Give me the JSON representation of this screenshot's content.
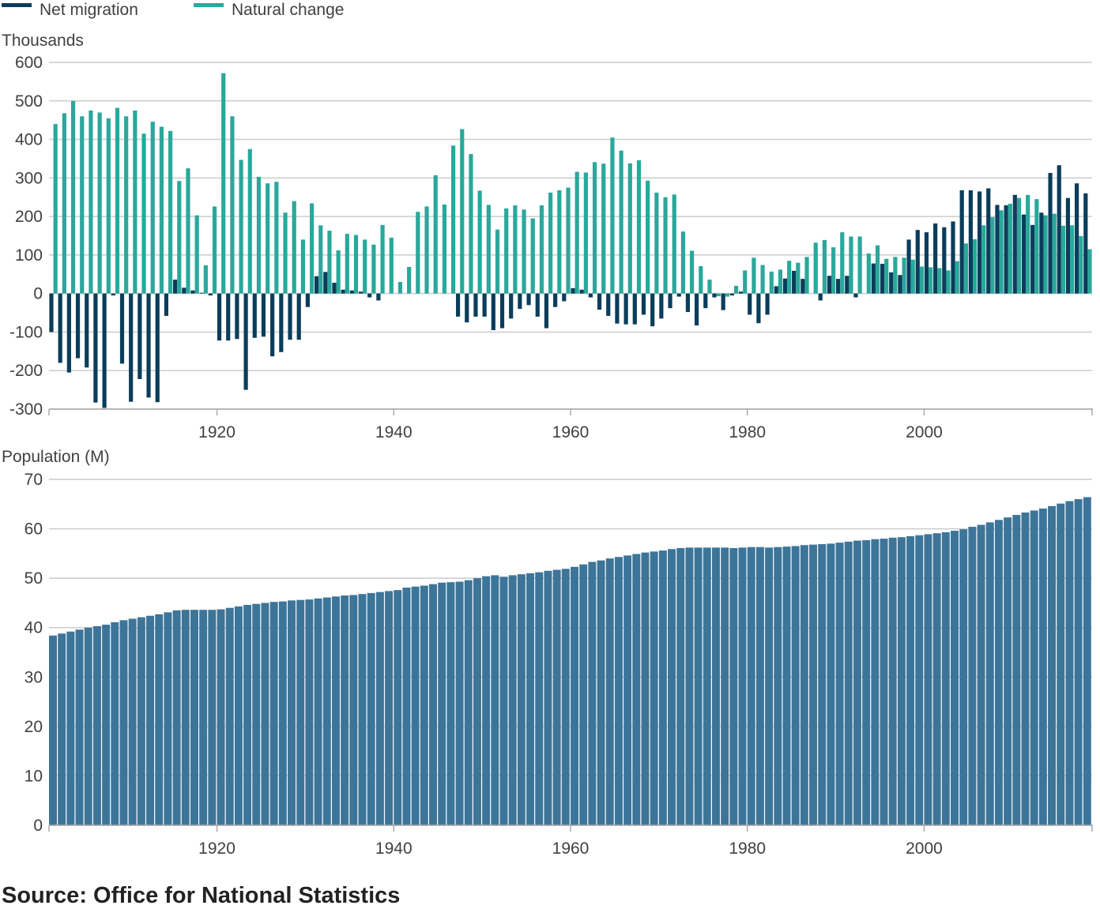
{
  "legend": {
    "net_migration": "Net migration",
    "natural_change": "Natural change"
  },
  "colors": {
    "net_migration": "#0b3d5b",
    "natural_change": "#29a89b",
    "population": "#3d7599",
    "grid": "#cccccc"
  },
  "source": "Source: Office for National Statistics",
  "chart_data": [
    {
      "type": "bar",
      "ylabel": "Thousands",
      "ylim": [
        -300,
        600
      ],
      "yticks": [
        600,
        500,
        400,
        300,
        200,
        100,
        0,
        -100,
        -200,
        -300
      ],
      "xticks": [
        1920,
        1940,
        1960,
        1980,
        2000
      ],
      "xlim": [
        1901,
        2018
      ],
      "grid": true,
      "legend_position": "top-left",
      "x": [
        1901,
        1902,
        1903,
        1904,
        1905,
        1906,
        1907,
        1908,
        1909,
        1910,
        1911,
        1912,
        1913,
        1914,
        1915,
        1916,
        1917,
        1918,
        1919,
        1920,
        1921,
        1922,
        1923,
        1924,
        1925,
        1926,
        1927,
        1928,
        1929,
        1930,
        1931,
        1932,
        1933,
        1934,
        1935,
        1936,
        1937,
        1938,
        1939,
        1940,
        1941,
        1942,
        1943,
        1944,
        1945,
        1946,
        1947,
        1948,
        1949,
        1950,
        1951,
        1952,
        1953,
        1954,
        1955,
        1956,
        1957,
        1958,
        1959,
        1960,
        1961,
        1962,
        1963,
        1964,
        1965,
        1966,
        1967,
        1968,
        1969,
        1970,
        1971,
        1972,
        1973,
        1974,
        1975,
        1976,
        1977,
        1978,
        1979,
        1980,
        1981,
        1982,
        1983,
        1984,
        1985,
        1986,
        1987,
        1988,
        1989,
        1990,
        1991,
        1992,
        1993,
        1994,
        1995,
        1996,
        1997,
        1998,
        1999,
        2000,
        2001,
        2002,
        2003,
        2004,
        2005,
        2006,
        2007,
        2008,
        2009,
        2010,
        2011,
        2012,
        2013,
        2014,
        2015,
        2016,
        2017,
        2018
      ],
      "series": [
        {
          "name": "Natural change",
          "values": [
            440,
            468,
            500,
            460,
            475,
            470,
            455,
            482,
            460,
            475,
            415,
            446,
            433,
            422,
            292,
            325,
            203,
            73,
            226,
            572,
            460,
            347,
            375,
            303,
            286,
            290,
            210,
            240,
            140,
            234,
            177,
            163,
            112,
            155,
            152,
            140,
            127,
            178,
            145,
            30,
            69,
            212,
            226,
            307,
            231,
            384,
            427,
            362,
            267,
            230,
            166,
            221,
            229,
            218,
            195,
            229,
            262,
            268,
            275,
            316,
            314,
            341,
            337,
            405,
            371,
            338,
            346,
            293,
            262,
            250,
            257,
            161,
            111,
            71,
            36,
            -7,
            -8,
            20,
            60,
            93,
            74,
            57,
            62,
            85,
            80,
            95,
            132,
            139,
            120,
            159,
            148,
            148,
            104,
            125,
            90,
            95,
            93,
            88,
            70,
            68,
            66,
            60,
            84,
            130,
            141,
            177,
            198,
            216,
            233,
            248,
            256,
            245,
            203,
            207,
            176,
            177,
            149,
            115
          ]
        },
        {
          "name": "Net migration",
          "values": [
            -100,
            -180,
            -205,
            -168,
            -192,
            -283,
            -297,
            -5,
            -182,
            -281,
            -222,
            -270,
            -282,
            -58,
            36,
            15,
            8,
            2,
            -5,
            -122,
            -122,
            -118,
            -250,
            -115,
            -112,
            -163,
            -152,
            -120,
            -120,
            -35,
            45,
            56,
            28,
            10,
            8,
            5,
            -10,
            -18,
            0,
            0,
            0,
            0,
            0,
            0,
            0,
            0,
            -60,
            -75,
            -60,
            -60,
            -95,
            -90,
            -65,
            -40,
            -30,
            -60,
            -90,
            -35,
            -20,
            14,
            10,
            -10,
            -42,
            -58,
            -78,
            -80,
            -80,
            -55,
            -85,
            -65,
            -38,
            -8,
            -48,
            -83,
            -38,
            -10,
            -43,
            -5,
            5,
            -55,
            -77,
            -55,
            19,
            39,
            59,
            38,
            0,
            -18,
            46,
            38,
            46,
            -10,
            0,
            78,
            77,
            55,
            48,
            140,
            165,
            159,
            182,
            172,
            187,
            268,
            268,
            265,
            273,
            230,
            229,
            256,
            205,
            178,
            210,
            313,
            333,
            248,
            286,
            260
          ]
        }
      ]
    },
    {
      "type": "bar",
      "ylabel": "Population (M)",
      "ylim": [
        0,
        70
      ],
      "yticks": [
        70,
        60,
        50,
        40,
        30,
        20,
        10,
        0
      ],
      "xticks": [
        1920,
        1940,
        1960,
        1980,
        2000
      ],
      "xlim": [
        1901,
        2018
      ],
      "grid": true,
      "x": [
        1901,
        1902,
        1903,
        1904,
        1905,
        1906,
        1907,
        1908,
        1909,
        1910,
        1911,
        1912,
        1913,
        1914,
        1915,
        1916,
        1917,
        1918,
        1919,
        1920,
        1921,
        1922,
        1923,
        1924,
        1925,
        1926,
        1927,
        1928,
        1929,
        1930,
        1931,
        1932,
        1933,
        1934,
        1935,
        1936,
        1937,
        1938,
        1939,
        1940,
        1941,
        1942,
        1943,
        1944,
        1945,
        1946,
        1947,
        1948,
        1949,
        1950,
        1951,
        1952,
        1953,
        1954,
        1955,
        1956,
        1957,
        1958,
        1959,
        1960,
        1961,
        1962,
        1963,
        1964,
        1965,
        1966,
        1967,
        1968,
        1969,
        1970,
        1971,
        1972,
        1973,
        1974,
        1975,
        1976,
        1977,
        1978,
        1979,
        1980,
        1981,
        1982,
        1983,
        1984,
        1985,
        1986,
        1987,
        1988,
        1989,
        1990,
        1991,
        1992,
        1993,
        1994,
        1995,
        1996,
        1997,
        1998,
        1999,
        2000,
        2001,
        2002,
        2003,
        2004,
        2005,
        2006,
        2007,
        2008,
        2009,
        2010,
        2011,
        2012,
        2013,
        2014,
        2015,
        2016,
        2017,
        2018
      ],
      "series": [
        {
          "name": "Population",
          "values": [
            38.4,
            38.8,
            39.2,
            39.6,
            40.0,
            40.3,
            40.6,
            41.1,
            41.5,
            41.8,
            42.1,
            42.4,
            42.7,
            43.1,
            43.5,
            43.6,
            43.6,
            43.6,
            43.6,
            43.7,
            44.0,
            44.3,
            44.6,
            44.8,
            45.0,
            45.2,
            45.3,
            45.5,
            45.6,
            45.7,
            45.9,
            46.1,
            46.3,
            46.5,
            46.6,
            46.8,
            47.0,
            47.2,
            47.4,
            47.6,
            48.1,
            48.3,
            48.5,
            48.8,
            49.1,
            49.2,
            49.3,
            49.6,
            50.0,
            50.4,
            50.6,
            50.3,
            50.6,
            50.8,
            51.0,
            51.2,
            51.5,
            51.7,
            51.9,
            52.3,
            52.8,
            53.3,
            53.6,
            54.0,
            54.3,
            54.6,
            54.9,
            55.2,
            55.4,
            55.6,
            55.9,
            56.1,
            56.2,
            56.2,
            56.2,
            56.2,
            56.2,
            56.1,
            56.2,
            56.3,
            56.3,
            56.2,
            56.3,
            56.4,
            56.5,
            56.7,
            56.8,
            56.9,
            57.0,
            57.2,
            57.4,
            57.6,
            57.7,
            57.9,
            58.0,
            58.2,
            58.3,
            58.5,
            58.7,
            58.9,
            59.1,
            59.3,
            59.6,
            59.9,
            60.4,
            60.8,
            61.3,
            61.8,
            62.3,
            62.8,
            63.3,
            63.7,
            64.1,
            64.6,
            65.1,
            65.6,
            66.0,
            66.4
          ]
        }
      ]
    }
  ]
}
